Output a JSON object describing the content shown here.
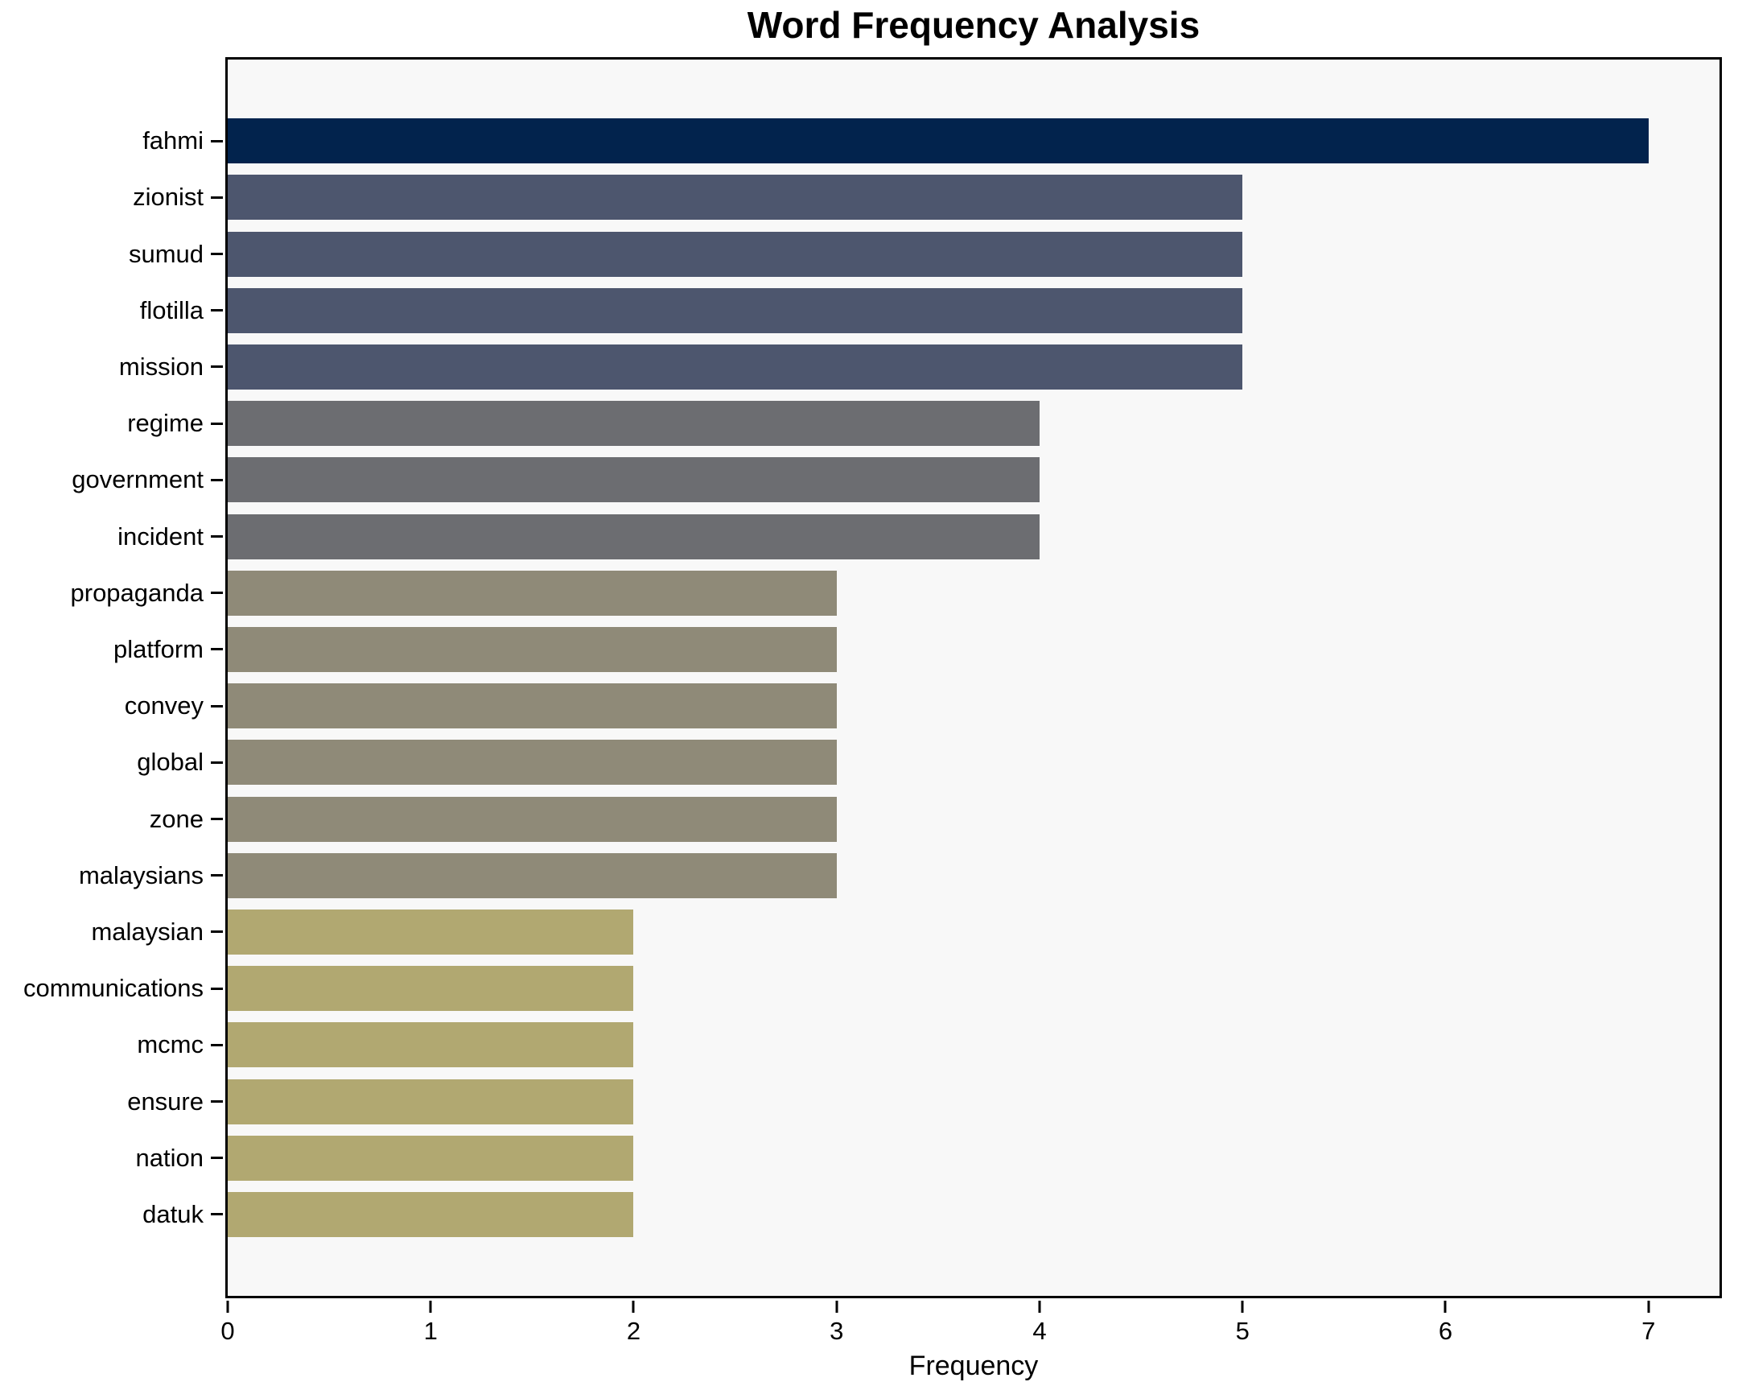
{
  "title": "Word Frequency Analysis",
  "xlabel": "Frequency",
  "colors": {
    "plot_background": "#f8f8f8",
    "figure_background": "#ffffff",
    "spine": "#000000",
    "text": "#000000",
    "freq_7": "#02234d",
    "freq_5": "#4d566e",
    "freq_4": "#6c6d71",
    "freq_3": "#8f8a78",
    "freq_2": "#b1a871"
  },
  "chart_data": {
    "type": "bar",
    "orientation": "horizontal",
    "title": "Word Frequency Analysis",
    "xlabel": "Frequency",
    "ylabel": "",
    "categories": [
      "fahmi",
      "zionist",
      "sumud",
      "flotilla",
      "mission",
      "regime",
      "government",
      "incident",
      "propaganda",
      "platform",
      "convey",
      "global",
      "zone",
      "malaysians",
      "malaysian",
      "communications",
      "mcmc",
      "ensure",
      "nation",
      "datuk"
    ],
    "values": [
      7,
      5,
      5,
      5,
      5,
      4,
      4,
      4,
      3,
      3,
      3,
      3,
      3,
      3,
      2,
      2,
      2,
      2,
      2,
      2
    ],
    "bar_colors": [
      "#02234d",
      "#4d566e",
      "#4d566e",
      "#4d566e",
      "#4d566e",
      "#6c6d71",
      "#6c6d71",
      "#6c6d71",
      "#8f8a78",
      "#8f8a78",
      "#8f8a78",
      "#8f8a78",
      "#8f8a78",
      "#8f8a78",
      "#b1a871",
      "#b1a871",
      "#b1a871",
      "#b1a871",
      "#b1a871",
      "#b1a871"
    ],
    "xticks": [
      0,
      1,
      2,
      3,
      4,
      5,
      6,
      7
    ],
    "xlim": [
      0,
      7.35
    ],
    "grid": false,
    "legend": "none",
    "bar_height_fraction": 0.8,
    "plot_bg": "#f8f8f8"
  }
}
